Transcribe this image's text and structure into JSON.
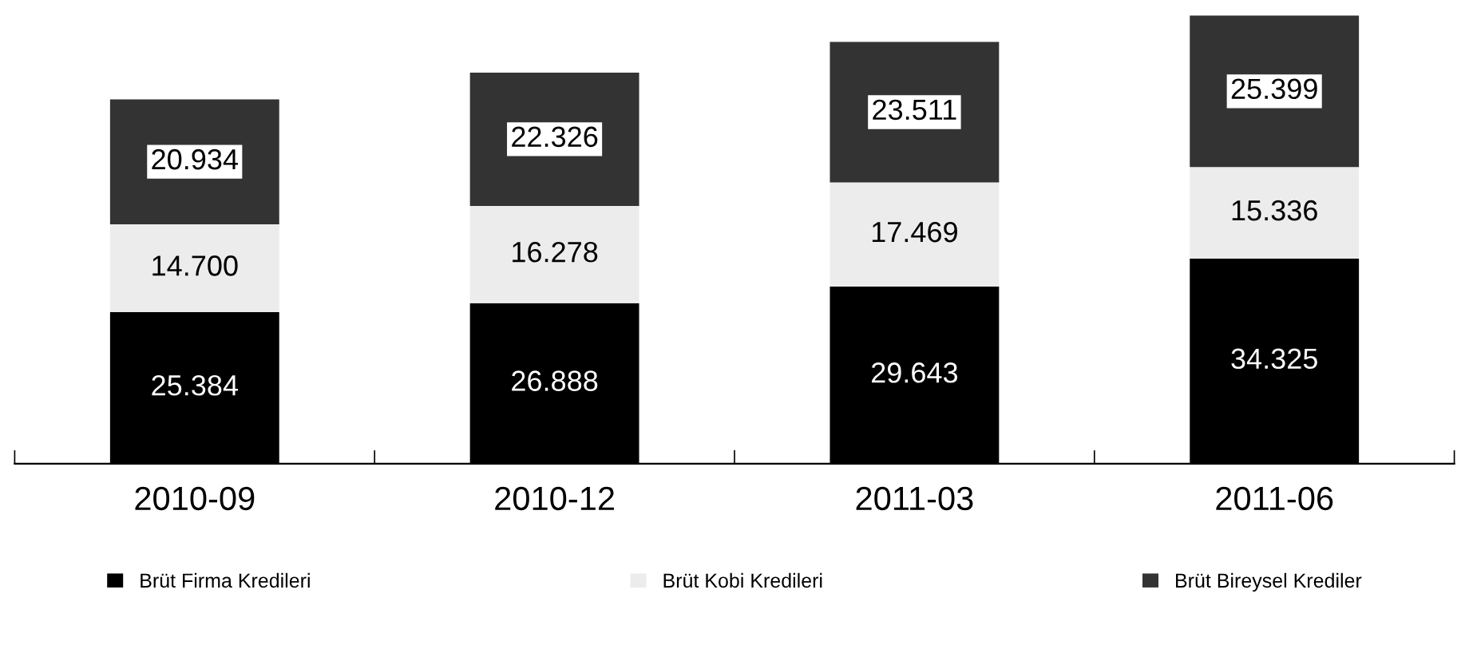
{
  "chart_data": {
    "type": "bar",
    "stacked": true,
    "categories": [
      "2010-09",
      "2010-12",
      "2011-03",
      "2011-06"
    ],
    "series": [
      {
        "name": "Brüt Firma Kredileri",
        "color": "#000000",
        "values": [
          25.384,
          26.888,
          29.643,
          34.325
        ],
        "value_labels": [
          "25.384",
          "26.888",
          "29.643",
          "34.325"
        ]
      },
      {
        "name": "Brüt Kobi Kredileri",
        "color": "#ececec",
        "values": [
          14.7,
          16.278,
          17.469,
          15.336
        ],
        "value_labels": [
          "14.700",
          "16.278",
          "17.469",
          "15.336"
        ]
      },
      {
        "name": "Brüt Bireysel Krediler",
        "color": "#333333",
        "values": [
          20.934,
          22.326,
          23.511,
          25.399
        ],
        "value_labels": [
          "20.934",
          "22.326",
          "23.511",
          "25.399"
        ]
      }
    ],
    "legend": "bottom",
    "grid": false
  }
}
